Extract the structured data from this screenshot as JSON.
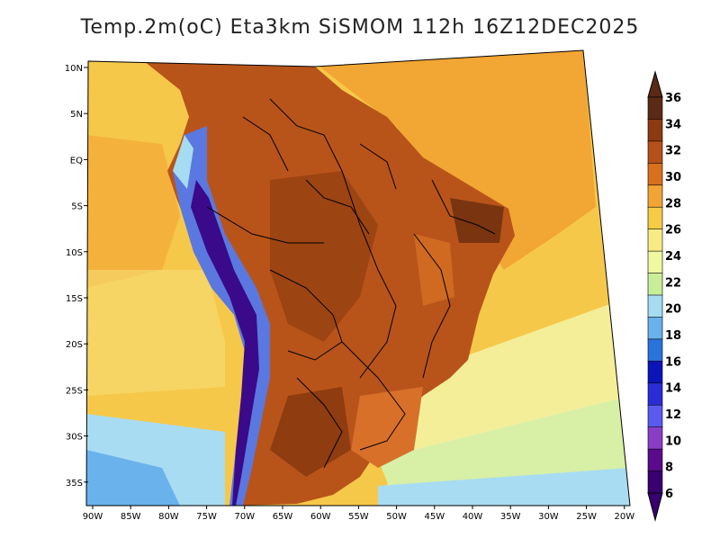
{
  "title": "Temp.2m(oC) Eta3km SiSMOM 112h 16Z12DEC2025",
  "lat_labels": [
    "10N",
    "5N",
    "EQ",
    "5S",
    "10S",
    "15S",
    "20S",
    "25S",
    "30S",
    "35S"
  ],
  "lon_labels": [
    "90W",
    "85W",
    "80W",
    "75W",
    "70W",
    "65W",
    "60W",
    "55W",
    "50W",
    "45W",
    "40W",
    "35W",
    "30W",
    "25W",
    "20W"
  ],
  "colorbar": {
    "labels": [
      "36",
      "34",
      "32",
      "30",
      "28",
      "26",
      "24",
      "22",
      "20",
      "18",
      "16",
      "14",
      "12",
      "10",
      "8",
      "6"
    ],
    "colors": [
      "#5a2a14",
      "#8b3a12",
      "#b5501a",
      "#d8701e",
      "#f2a534",
      "#f6cc46",
      "#f7ec84",
      "#f0f8a0",
      "#c8ee9a",
      "#a6dcf2",
      "#6ab2ec",
      "#2a72dc",
      "#0a14b8",
      "#2b2bd8",
      "#5a5af0",
      "#8a3ec8",
      "#5a0a8a",
      "#380070"
    ]
  },
  "colors": {
    "ocean": "#f7cf4f",
    "land": "#b25218",
    "border": "#000000"
  }
}
